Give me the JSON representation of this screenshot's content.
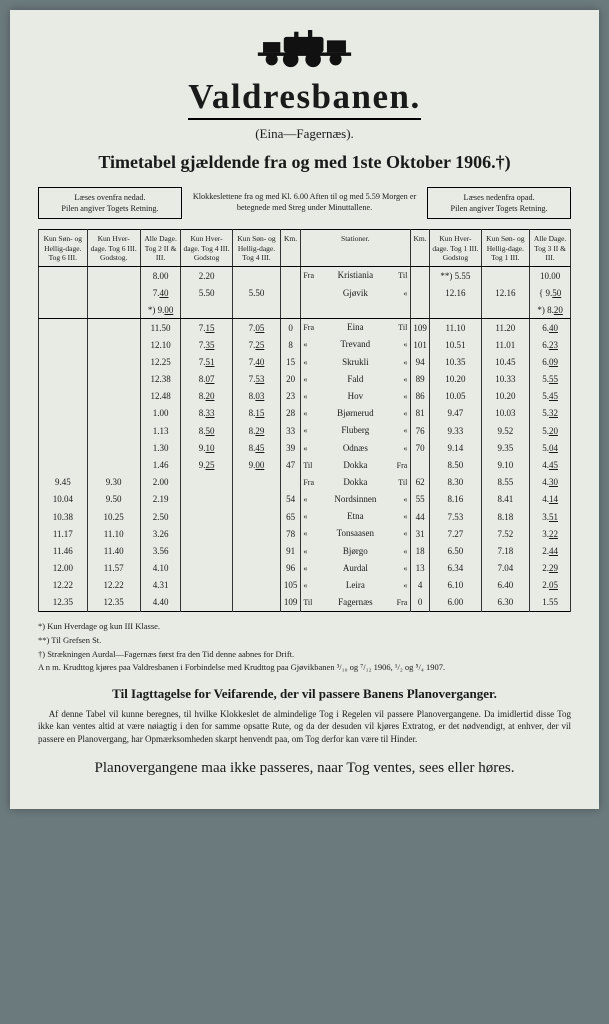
{
  "title": "Valdresbanen.",
  "subtitle": "(Eina—Fagernæs).",
  "headline": "Timetabel gjældende fra og med 1ste Oktober 1906.†)",
  "notices": {
    "left": "Læses ovenfra nedad.\nPilen angiver Togets Retning.",
    "center": "Klokkeslettene fra og med Kl. 6.00 Aften til og med 5.59 Morgen er betegnede med Streg under Minuttallene.",
    "right": "Læses nedenfra opad.\nPilen angiver Togets Retning."
  },
  "columns": [
    "Kun Søn- og Hellig-dage. Tog 6 III.",
    "Kun Hver-dage. Tog 6 III. Godstog.",
    "Alle Dage. Tog 2 II & III.",
    "Kun Hver-dage. Tog 4 III. Godstog",
    "Kun Søn- og Hellig-dage. Tog 4 III.",
    "Km.",
    "Stationer.",
    "Km.",
    "Kun Hver-dage. Tog 1 III. Godstog",
    "Kun Søn- og Hellig-dage. Tog 1 III.",
    "Alle Dage. Tog 3 II & III."
  ],
  "rowsTop": [
    [
      "",
      "",
      "8.00",
      "2.20",
      "",
      "",
      {
        "pre": "Fra",
        "name": "Kristiania",
        "post": "Til"
      },
      "",
      "**) 5.55",
      "",
      "10.00"
    ],
    [
      "",
      "",
      "7.40|",
      "5.50",
      "5.50",
      "",
      {
        "pre": "",
        "name": "Gjøvik",
        "post": "«"
      },
      "",
      "12.16",
      "12.16",
      "{ 9.50|"
    ],
    [
      "",
      "",
      "*) 9.00|",
      "",
      "",
      "",
      {
        "pre": "",
        "name": "",
        "post": ""
      },
      "",
      "",
      "",
      "*) 8.20|"
    ]
  ],
  "rowsMain": [
    [
      "",
      "",
      "11.50",
      "7.15|",
      "7.05|",
      "0",
      {
        "pre": "Fra",
        "name": "Eina",
        "post": "Til"
      },
      "109",
      "11.10",
      "11.20",
      "6.40|"
    ],
    [
      "",
      "",
      "12.10",
      "7.35|",
      "7.25|",
      "8",
      {
        "pre": "«",
        "name": "Trevand",
        "post": "«"
      },
      "101",
      "10.51",
      "11.01",
      "6.23|"
    ],
    [
      "",
      "",
      "12.25",
      "7.51|",
      "7.40|",
      "15",
      {
        "pre": "«",
        "name": "Skrukli",
        "post": "«"
      },
      "94",
      "10.35",
      "10.45",
      "6.09|"
    ],
    [
      "",
      "",
      "12.38",
      "8.07|",
      "7.53|",
      "20",
      {
        "pre": "«",
        "name": "Fald",
        "post": "«"
      },
      "89",
      "10.20",
      "10.33",
      "5.55|"
    ],
    [
      "",
      "",
      "12.48",
      "8.20|",
      "8.03|",
      "23",
      {
        "pre": "«",
        "name": "Hov",
        "post": "«"
      },
      "86",
      "10.05",
      "10.20",
      "5.45|"
    ],
    [
      "",
      "",
      "1.00",
      "8.33|",
      "8.15|",
      "28",
      {
        "pre": "«",
        "name": "Bjørnerud",
        "post": "«"
      },
      "81",
      "9.47",
      "10.03",
      "5.32|"
    ],
    [
      "",
      "",
      "1.13",
      "8.50|",
      "8.29|",
      "33",
      {
        "pre": "«",
        "name": "Fluberg",
        "post": "«"
      },
      "76",
      "9.33",
      "9.52",
      "5.20|"
    ],
    [
      "",
      "",
      "1.30",
      "9.10|",
      "8.45|",
      "39",
      {
        "pre": "«",
        "name": "Odnæs",
        "post": "«"
      },
      "70",
      "9.14",
      "9.35",
      "5.04|"
    ],
    [
      "",
      "",
      "1.46",
      "9.25|",
      "9.00|",
      "47",
      {
        "pre": "Til",
        "name": "Dokka",
        "post": "Fra"
      },
      "",
      "8.50",
      "9.10",
      "4.45|"
    ],
    [
      "9.45",
      "9.30",
      "2.00",
      "",
      "",
      "",
      {
        "pre": "Fra",
        "name": "Dokka",
        "post": "Til"
      },
      "62",
      "8.30",
      "8.55",
      "4.30|"
    ],
    [
      "10.04",
      "9.50",
      "2.19",
      "",
      "",
      "54",
      {
        "pre": "«",
        "name": "Nordsinnen",
        "post": "«"
      },
      "55",
      "8.16",
      "8.41",
      "4.14|"
    ],
    [
      "10.38",
      "10.25",
      "2.50",
      "",
      "",
      "65",
      {
        "pre": "«",
        "name": "Etna",
        "post": "«"
      },
      "44",
      "7.53",
      "8.18",
      "3.51|"
    ],
    [
      "11.17",
      "11.10",
      "3.26",
      "",
      "",
      "78",
      {
        "pre": "«",
        "name": "Tonsaasen",
        "post": "«"
      },
      "31",
      "7.27",
      "7.52",
      "3.22|"
    ],
    [
      "11.46",
      "11.40",
      "3.56",
      "",
      "",
      "91",
      {
        "pre": "«",
        "name": "Bjørgo",
        "post": "«"
      },
      "18",
      "6.50",
      "7.18",
      "2.44|"
    ],
    [
      "12.00",
      "11.57",
      "4.10",
      "",
      "",
      "96",
      {
        "pre": "«",
        "name": "Aurdal",
        "post": "«"
      },
      "13",
      "6.34",
      "7.04",
      "2.29|"
    ],
    [
      "12.22",
      "12.22",
      "4.31",
      "",
      "",
      "105",
      {
        "pre": "«",
        "name": "Leira",
        "post": "«"
      },
      "4",
      "6.10",
      "6.40",
      "2.05|"
    ],
    [
      "12.35",
      "12.35",
      "4.40",
      "",
      "",
      "109",
      {
        "pre": "Til",
        "name": "Fagernæs",
        "post": "Fra"
      },
      "0",
      "6.00",
      "6.30",
      "1.55"
    ]
  ],
  "footnotes": [
    "*) Kun Hverdage og kun III Klasse.",
    "**) Til Grefsen St.",
    "†) Strækningen Aurdal—Fagernæs først fra den Tid denne aabnes for Drift.",
    "A n m. Krudttog kjøres paa Valdresbanen i Forbindelse med Krudttog paa Gjøvikbanen ³/₁₀ og ⁷/₁₂ 1906, ¹/₂ og ⁵/₄ 1907."
  ],
  "section_title": "Til Iagttagelse for Veifarende, der vil passere Banens Planoverganger.",
  "section_body": "Af denne Tabel vil kunne beregnes, til hvilke Klokkeslet de almindelige Tog i Regelen vil passere Planovergangene. Da imidlertid disse Tog ikke kan ventes altid at være nøiagtig i den for samme opsatte Rute, og da der desuden vil kjøres Extratog, er det nødvendigt, at enhver, der vil passere en Planovergang, har Opmærksomheden skarpt henvendt paa, om Tog derfor kan være til Hinder.",
  "warning": "Planovergangene maa ikke passeres, naar Tog ventes, sees eller høres."
}
